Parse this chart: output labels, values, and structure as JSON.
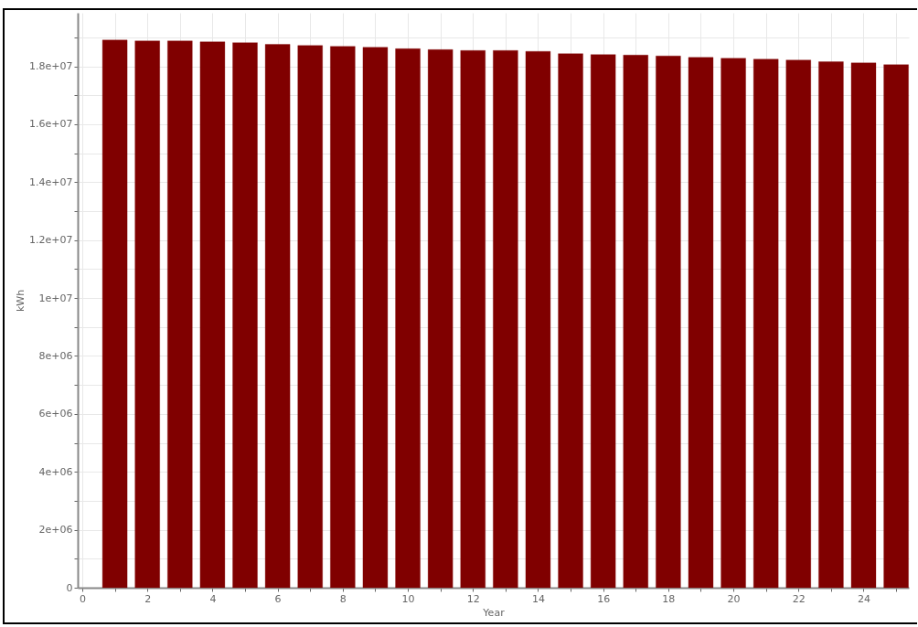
{
  "chart_data": {
    "type": "bar",
    "xlabel": "Year",
    "ylabel": "kWh",
    "x": [
      1,
      2,
      3,
      4,
      5,
      6,
      7,
      8,
      9,
      10,
      11,
      12,
      13,
      14,
      15,
      16,
      17,
      18,
      19,
      20,
      21,
      22,
      23,
      24,
      25
    ],
    "series": [
      {
        "color": "#800000",
        "values": [
          18910000,
          18880000,
          18880000,
          18850000,
          18820000,
          18760000,
          18720000,
          18690000,
          18660000,
          18610000,
          18580000,
          18550000,
          18550000,
          18520000,
          18440000,
          18410000,
          18390000,
          18360000,
          18310000,
          18280000,
          18250000,
          18220000,
          18160000,
          18120000,
          18060000
        ]
      }
    ],
    "xlim": [
      0,
      25.25
    ],
    "xticks": [
      0,
      {
        "value": 1,
        "label": null
      },
      2,
      {
        "value": 3,
        "label": null
      },
      4,
      {
        "value": 5,
        "label": null
      },
      6,
      {
        "value": 7,
        "label": null
      },
      8,
      {
        "value": 9,
        "label": null
      },
      10,
      {
        "value": 11,
        "label": null
      },
      12,
      {
        "value": 13,
        "label": null
      },
      14,
      {
        "value": 15,
        "label": null
      },
      16,
      {
        "value": 17,
        "label": null
      },
      18,
      {
        "value": 19,
        "label": null
      },
      20,
      {
        "value": 21,
        "label": null
      },
      22,
      {
        "value": 23,
        "label": null
      },
      24,
      {
        "value": 25,
        "label": null
      }
    ],
    "ylim": [
      0,
      19850000
    ],
    "yticks": [
      0,
      {
        "value": 1000000,
        "label": null
      },
      {
        "value": 2000000,
        "label": "2e+06"
      },
      {
        "value": 3000000,
        "label": null
      },
      {
        "value": 4000000,
        "label": "4e+06"
      },
      {
        "value": 5000000,
        "label": null
      },
      {
        "value": 6000000,
        "label": "6e+06"
      },
      {
        "value": 7000000,
        "label": null
      },
      {
        "value": 8000000,
        "label": "8e+06"
      },
      {
        "value": 9000000,
        "label": null
      },
      {
        "value": 10000000,
        "label": "1e+07"
      },
      {
        "value": 11000000,
        "label": null
      },
      {
        "value": 12000000,
        "label": "1.2e+07"
      },
      {
        "value": 13000000,
        "label": null
      },
      {
        "value": 14000000,
        "label": "1.4e+07"
      },
      {
        "value": 15000000,
        "label": null
      },
      {
        "value": 16000000,
        "label": "1.6e+07"
      },
      {
        "value": 17000000,
        "label": null
      },
      {
        "value": 18000000,
        "label": "1.8e+07"
      },
      {
        "value": 19000000,
        "label": null
      }
    ],
    "grid": true
  }
}
